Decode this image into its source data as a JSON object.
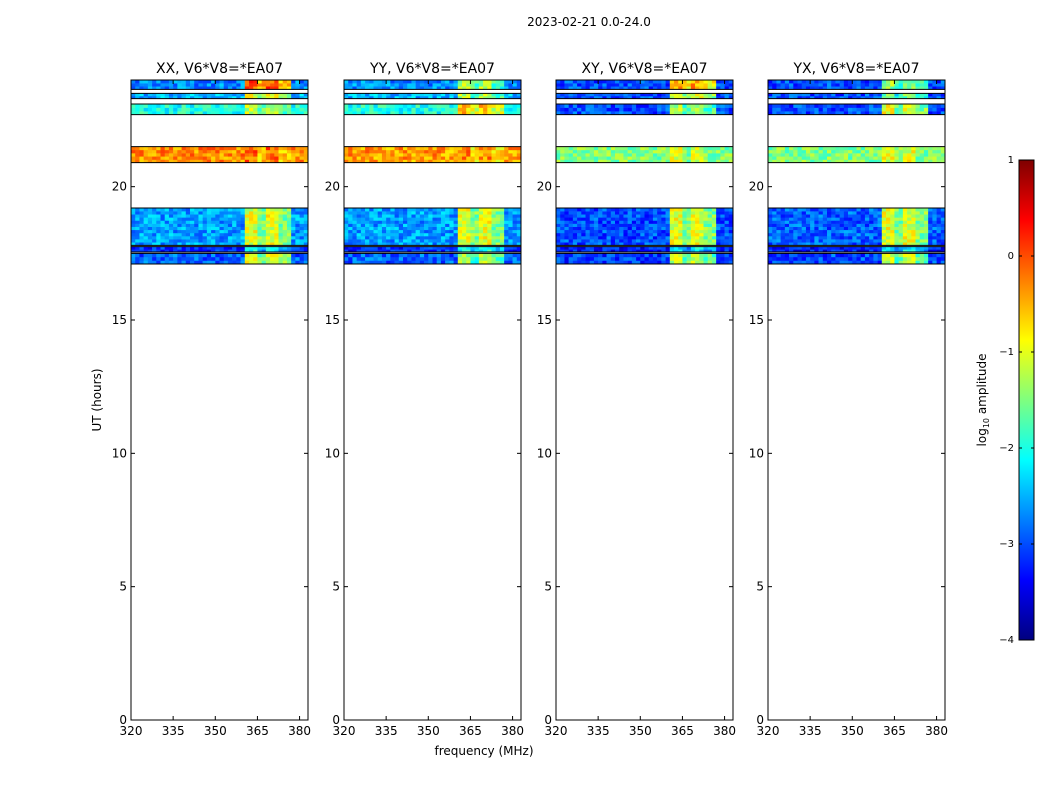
{
  "figure_title": "2023-02-21 0.0-24.0",
  "colors": {
    "jet": [
      "#00007f",
      "#0000ff",
      "#007fff",
      "#00ffff",
      "#7fff7f",
      "#ffff00",
      "#ff7f00",
      "#ff0000",
      "#7f0000"
    ],
    "gap_line": "#000000"
  },
  "chart_data": [
    {
      "type": "heatmap",
      "title": "XX, V6*V8=*EA07",
      "xlabel": "",
      "ylabel": "UT (hours)",
      "xlim": [
        320,
        383
      ],
      "ylim": [
        0,
        24
      ],
      "xticks": [
        320,
        335,
        350,
        365,
        380
      ],
      "yticks": [
        0,
        5,
        10,
        15,
        20
      ],
      "time_bands": [
        {
          "ut": [
            17.1,
            17.5
          ],
          "base": -2.9,
          "rfi": -1.0
        },
        {
          "ut": [
            17.55,
            17.75
          ],
          "base": -3.2,
          "rfi": -2.0
        },
        {
          "ut": [
            17.8,
            19.2
          ],
          "base": -2.6,
          "rfi": -1.0
        },
        {
          "ut": [
            20.9,
            21.5
          ],
          "base": -0.3,
          "rfi": -0.1
        },
        {
          "ut": [
            22.7,
            23.1
          ],
          "base": -2.0,
          "rfi": -1.2
        },
        {
          "ut": [
            23.3,
            23.5
          ],
          "base": -2.5,
          "rfi": -1.0
        },
        {
          "ut": [
            23.65,
            24.0
          ],
          "base": -2.7,
          "rfi": 0.0
        }
      ],
      "rfi_range_mhz": [
        360,
        377
      ]
    },
    {
      "type": "heatmap",
      "title": "YY, V6*V8=*EA07",
      "xlabel": "frequency (MHz)",
      "ylabel": "",
      "xlim": [
        320,
        383
      ],
      "ylim": [
        0,
        24
      ],
      "xticks": [
        320,
        335,
        350,
        365,
        380
      ],
      "yticks": [
        0,
        5,
        10,
        15,
        20
      ],
      "time_bands": [
        {
          "ut": [
            17.1,
            17.5
          ],
          "base": -2.9,
          "rfi": -1.3
        },
        {
          "ut": [
            17.55,
            17.75
          ],
          "base": -3.2,
          "rfi": -2.0
        },
        {
          "ut": [
            17.8,
            19.2
          ],
          "base": -2.6,
          "rfi": -1.0
        },
        {
          "ut": [
            20.9,
            21.5
          ],
          "base": -0.4,
          "rfi": -0.3
        },
        {
          "ut": [
            22.7,
            23.1
          ],
          "base": -2.0,
          "rfi": -0.6
        },
        {
          "ut": [
            23.3,
            23.5
          ],
          "base": -2.5,
          "rfi": -1.3
        },
        {
          "ut": [
            23.65,
            24.0
          ],
          "base": -2.7,
          "rfi": -1.3
        }
      ],
      "rfi_range_mhz": [
        360,
        377
      ]
    },
    {
      "type": "heatmap",
      "title": "XY, V6*V8=*EA07",
      "xlabel": "",
      "ylabel": "",
      "xlim": [
        320,
        383
      ],
      "ylim": [
        0,
        24
      ],
      "xticks": [
        320,
        335,
        350,
        365,
        380
      ],
      "yticks": [
        0,
        5,
        10,
        15,
        20
      ],
      "time_bands": [
        {
          "ut": [
            17.1,
            17.5
          ],
          "base": -3.1,
          "rfi": -1.2
        },
        {
          "ut": [
            17.55,
            17.75
          ],
          "base": -3.3,
          "rfi": -2.2
        },
        {
          "ut": [
            17.8,
            19.2
          ],
          "base": -3.0,
          "rfi": -1.0
        },
        {
          "ut": [
            20.9,
            21.5
          ],
          "base": -1.5,
          "rfi": -1.0
        },
        {
          "ut": [
            22.7,
            23.1
          ],
          "base": -3.0,
          "rfi": -1.3
        },
        {
          "ut": [
            23.3,
            23.5
          ],
          "base": -3.0,
          "rfi": -1.0
        },
        {
          "ut": [
            23.65,
            24.0
          ],
          "base": -3.0,
          "rfi": -0.4
        }
      ],
      "rfi_range_mhz": [
        360,
        377
      ]
    },
    {
      "type": "heatmap",
      "title": "YX, V6*V8=*EA07",
      "xlabel": "",
      "ylabel": "",
      "xlim": [
        320,
        383
      ],
      "ylim": [
        0,
        24
      ],
      "xticks": [
        320,
        335,
        350,
        365,
        380
      ],
      "yticks": [
        0,
        5,
        10,
        15,
        20
      ],
      "time_bands": [
        {
          "ut": [
            17.1,
            17.5
          ],
          "base": -3.0,
          "rfi": -1.2
        },
        {
          "ut": [
            17.55,
            17.75
          ],
          "base": -3.3,
          "rfi": -2.2
        },
        {
          "ut": [
            17.8,
            19.2
          ],
          "base": -2.9,
          "rfi": -1.0
        },
        {
          "ut": [
            20.9,
            21.5
          ],
          "base": -1.5,
          "rfi": -1.0
        },
        {
          "ut": [
            22.7,
            23.1
          ],
          "base": -3.0,
          "rfi": -1.0
        },
        {
          "ut": [
            23.3,
            23.5
          ],
          "base": -3.0,
          "rfi": -1.6
        },
        {
          "ut": [
            23.65,
            24.0
          ],
          "base": -3.0,
          "rfi": -1.4
        }
      ],
      "rfi_range_mhz": [
        360,
        377
      ]
    }
  ],
  "colorbar": {
    "label_prefix": "log",
    "label_sub": "10",
    "label_suffix": " amplitude",
    "ticks": [
      "1",
      "0",
      "−1",
      "−2",
      "−3",
      "−4"
    ],
    "range": [
      -4,
      1
    ]
  }
}
